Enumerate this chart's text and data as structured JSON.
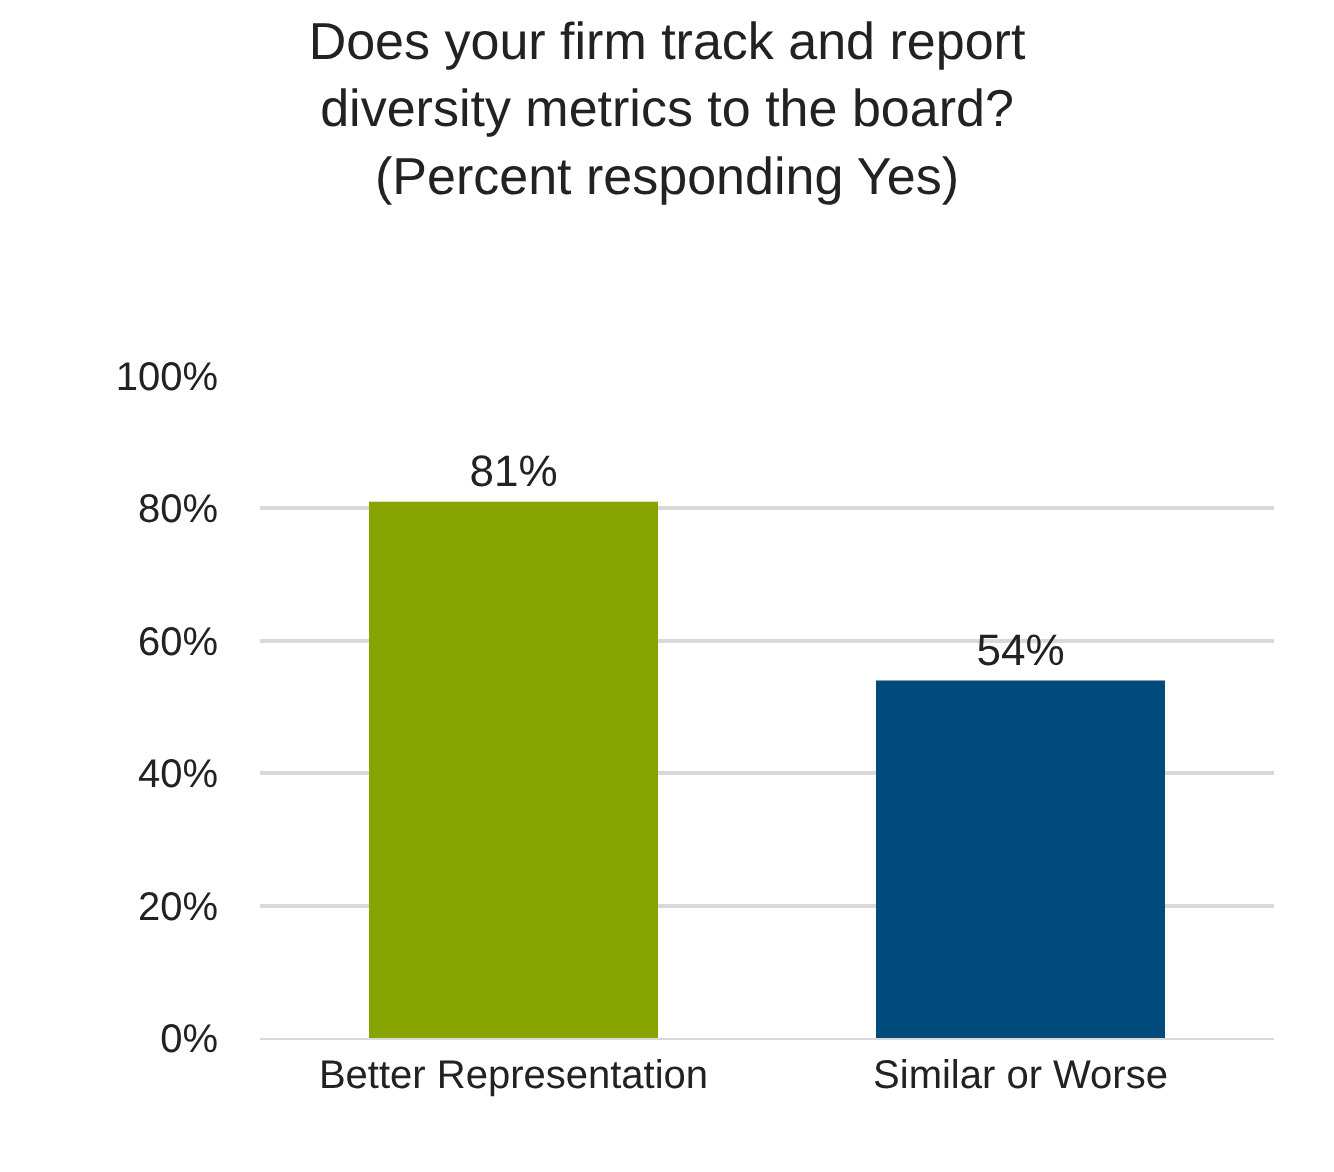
{
  "chart_data": {
    "type": "bar",
    "title": "Does your firm track and report\ndiversity metrics to the board?\n(Percent responding Yes)",
    "categories": [
      "Better Representation",
      "Similar or Worse"
    ],
    "values": [
      81,
      54
    ],
    "colors": [
      "#86a300",
      "#004b7c"
    ],
    "value_labels": [
      "81%",
      "54%"
    ],
    "ylim": [
      0,
      100
    ],
    "yticks": [
      {
        "value": 0,
        "label": "0%"
      },
      {
        "value": 20,
        "label": "20%"
      },
      {
        "value": 40,
        "label": "40%"
      },
      {
        "value": 60,
        "label": "60%"
      },
      {
        "value": 80,
        "label": "80%"
      },
      {
        "value": 100,
        "label": "100%"
      }
    ],
    "grid": "y",
    "legend": false
  }
}
